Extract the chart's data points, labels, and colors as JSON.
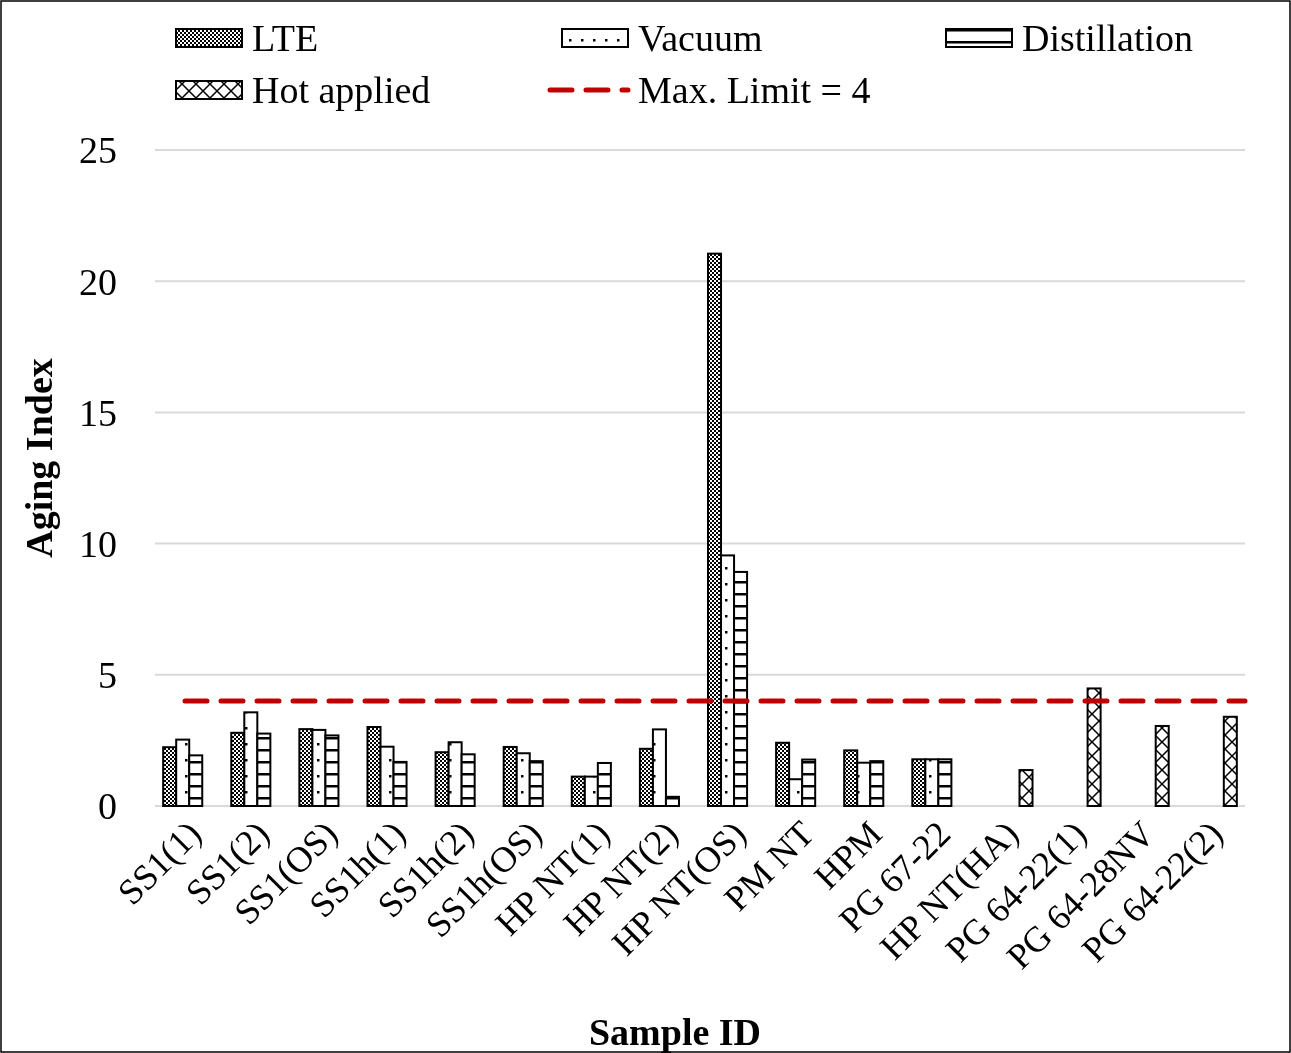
{
  "chart_data": {
    "type": "bar",
    "xlabel": "Sample ID",
    "ylabel": "Aging Index",
    "categories": [
      "SS1(1)",
      "SS1(2)",
      "SS1(OS)",
      "SS1h(1)",
      "SS1h(2)",
      "SS1h(OS)",
      "HP NT(1)",
      "HP NT(2)",
      "HP NT(OS)",
      "PM NT",
      "HPM",
      "PG 67-22",
      "HP NT(HA)",
      "PG 64-22(1)",
      "PG 64-28NV",
      "PG 64-22(2)"
    ],
    "series": [
      {
        "name": "LTE",
        "color": "#000000",
        "values": [
          2.24,
          2.79,
          2.93,
          3.01,
          2.05,
          2.25,
          1.12,
          2.18,
          21.05,
          2.41,
          2.12,
          1.78,
          null,
          null,
          null,
          null
        ]
      },
      {
        "name": "Vacuum",
        "color": "#000000",
        "values": [
          2.53,
          3.57,
          2.9,
          2.26,
          2.43,
          2.01,
          1.12,
          2.92,
          9.55,
          1.02,
          1.65,
          1.78,
          null,
          null,
          null,
          null
        ]
      },
      {
        "name": "Distillation",
        "color": "#000000",
        "values": [
          1.93,
          2.76,
          2.69,
          1.68,
          1.97,
          1.71,
          1.64,
          0.35,
          8.92,
          1.77,
          1.71,
          1.78,
          null,
          null,
          null,
          null
        ]
      },
      {
        "name": "Hot applied",
        "color": "#000000",
        "values": [
          null,
          null,
          null,
          null,
          null,
          null,
          null,
          null,
          null,
          null,
          null,
          null,
          1.37,
          4.48,
          3.05,
          3.4
        ]
      }
    ],
    "ref_lines": [
      {
        "axis": "y",
        "value": 4,
        "label": "Max. Limit = 4",
        "color": "#c00000",
        "line_style": "dashed"
      }
    ],
    "ylim": [
      0,
      25
    ],
    "yticks": [
      0,
      5,
      10,
      15,
      20,
      25
    ],
    "grid": "y",
    "legend": "top"
  }
}
